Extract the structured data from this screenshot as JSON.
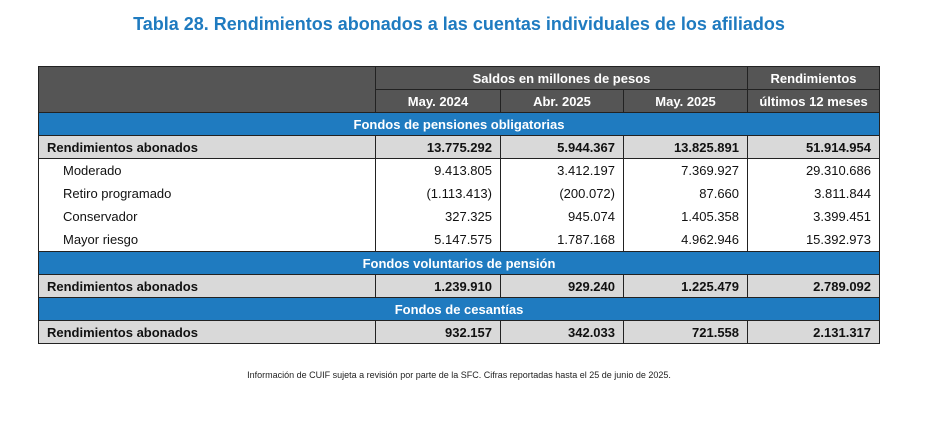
{
  "title": "Tabla 28. Rendimientos abonados a las cuentas individuales de los afiliados",
  "header": {
    "group": "Saldos en millones de pesos",
    "col1": "May. 2024",
    "col2": "Abr. 2025",
    "col3": "May. 2025",
    "last_line1": "Rendimientos",
    "last_line2": "últimos 12 meses"
  },
  "sections": [
    {
      "name": "Fondos de pensiones obligatorias",
      "total": {
        "label": "Rendimientos abonados",
        "v1": "13.775.292",
        "v2": "5.944.367",
        "v3": "13.825.891",
        "v4": "51.914.954"
      },
      "rows": [
        {
          "label": "Moderado",
          "v1": "9.413.805",
          "v2": "3.412.197",
          "v3": "7.369.927",
          "v4": "29.310.686"
        },
        {
          "label": "Retiro programado",
          "v1": "(1.113.413)",
          "v2": "(200.072)",
          "v3": "87.660",
          "v4": "3.811.844"
        },
        {
          "label": "Conservador",
          "v1": "327.325",
          "v2": "945.074",
          "v3": "1.405.358",
          "v4": "3.399.451"
        },
        {
          "label": "Mayor riesgo",
          "v1": "5.147.575",
          "v2": "1.787.168",
          "v3": "4.962.946",
          "v4": "15.392.973"
        }
      ]
    },
    {
      "name": "Fondos voluntarios de pensión",
      "total": {
        "label": "Rendimientos abonados",
        "v1": "1.239.910",
        "v2": "929.240",
        "v3": "1.225.479",
        "v4": "2.789.092"
      }
    },
    {
      "name": "Fondos de cesantías",
      "total": {
        "label": "Rendimientos abonados",
        "v1": "932.157",
        "v2": "342.033",
        "v3": "721.558",
        "v4": "2.131.317"
      }
    }
  ],
  "note": "Información de CUIF sujeta a revisión por parte de la SFC. Cifras reportadas hasta el 25 de junio de 2025."
}
